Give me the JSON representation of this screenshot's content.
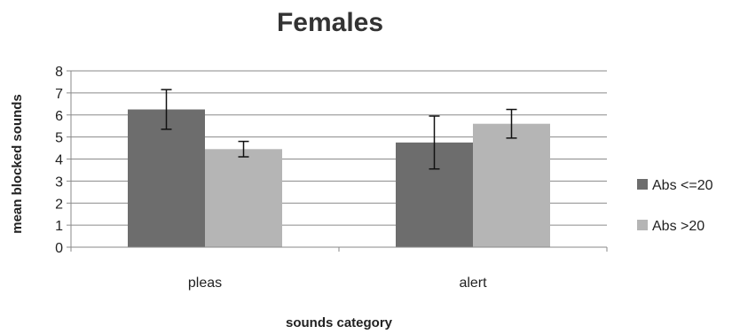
{
  "chart_data": {
    "type": "bar",
    "title": "Females",
    "xlabel": "sounds category",
    "ylabel": "mean blocked  sounds",
    "categories": [
      "pleas",
      "alert"
    ],
    "ylim": [
      0,
      8
    ],
    "yticks": [
      "0",
      "1",
      "2",
      "3",
      "4",
      "5",
      "6",
      "7",
      "8"
    ],
    "grid": true,
    "legend_position": "right",
    "series": [
      {
        "name": "Abs <=20",
        "color": "#6d6d6d",
        "values": [
          6.25,
          4.75
        ],
        "errors": [
          0.9,
          1.2
        ]
      },
      {
        "name": "Abs >20",
        "color": "#b5b5b5",
        "values": [
          4.45,
          5.6
        ],
        "errors": [
          0.35,
          0.65
        ]
      }
    ]
  }
}
